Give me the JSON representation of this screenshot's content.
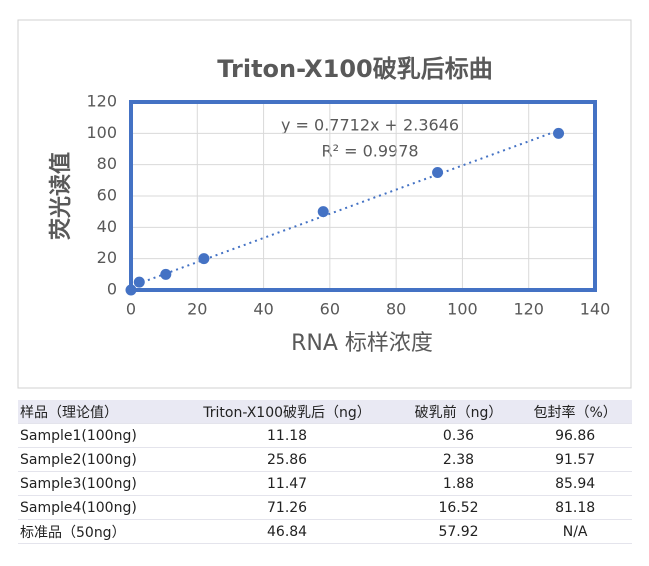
{
  "chart_data": {
    "type": "scatter",
    "title": "Triton-X100破乳后标曲",
    "x_label": "RNA 标样浓度",
    "y_label": "荧光读值",
    "x": [
      0,
      2.5,
      10.5,
      22,
      58,
      92.5,
      129
    ],
    "values": [
      0,
      5,
      10,
      20,
      50,
      75,
      100
    ],
    "color": "#4472c4",
    "xlim": [
      0,
      140
    ],
    "xticks": [
      0,
      20,
      40,
      60,
      80,
      100,
      120,
      140
    ],
    "ylim": [
      0,
      120
    ],
    "yticks": [
      0,
      20,
      40,
      60,
      80,
      100,
      120
    ],
    "grid": true,
    "trendline": {
      "slope": 0.7712,
      "intercept": 2.3646,
      "equation": "y = 0.7712x + 2.3646",
      "r2": "R² = 0.9978"
    }
  },
  "table": {
    "header": [
      "样品（理论值）",
      "Triton-X100破乳后（ng）",
      "破乳前（ng）",
      "包封率（%）"
    ],
    "rows": [
      [
        "Sample1(100ng)",
        "11.18",
        "0.36",
        "96.86"
      ],
      [
        "Sample2(100ng)",
        "25.86",
        "2.38",
        "91.57"
      ],
      [
        "Sample3(100ng)",
        "11.47",
        "1.88",
        "85.94"
      ],
      [
        "Sample4(100ng)",
        "71.26",
        "16.52",
        "81.18"
      ],
      [
        "标准品（50ng）",
        "46.84",
        "57.92",
        "N/A"
      ]
    ]
  }
}
